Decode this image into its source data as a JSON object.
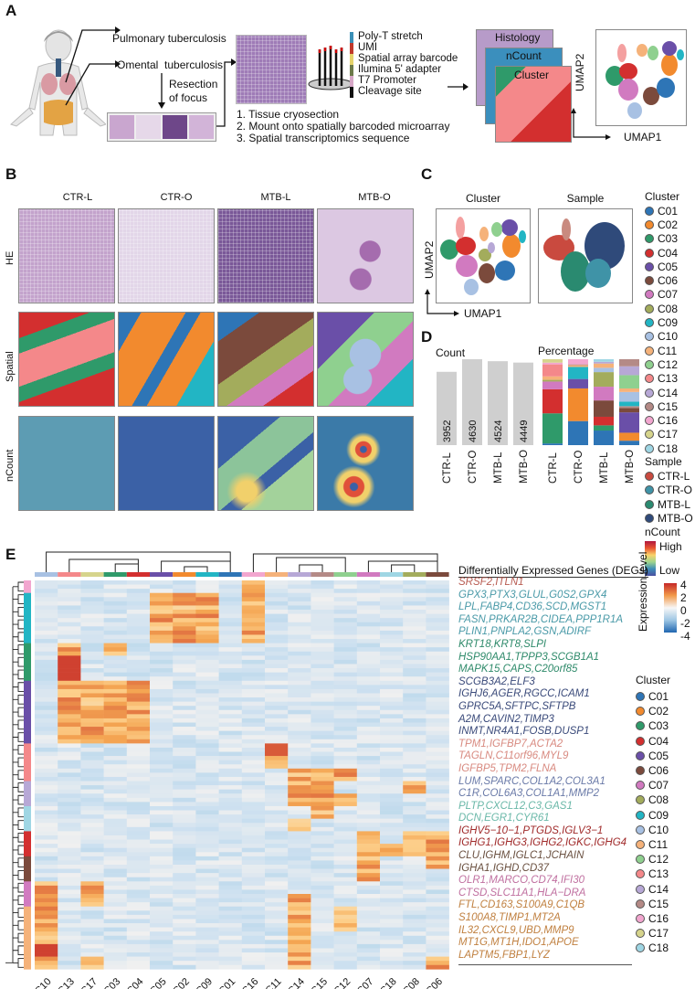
{
  "panels": {
    "A": {
      "label": "A",
      "targets": [
        "Pulmonary tuberculosis",
        "Omental  tuberculosis"
      ],
      "resection": [
        "Resection",
        "of focus"
      ],
      "steps": [
        "1. Tissue cryosection",
        "2. Mount onto spatially barcoded microarray",
        "3. Spatial transcriptomics sequence"
      ],
      "probe_parts": [
        {
          "label": "Poly-T stretch",
          "color": "#3a8fb7"
        },
        {
          "label": "UMI",
          "color": "#c0392b"
        },
        {
          "label": "Spatial array barcode",
          "color": "#e6d36b"
        },
        {
          "label": "Ilumina 5' adapter",
          "color": "#6d7a4a"
        },
        {
          "label": "T7 Promoter",
          "color": "#d7a7c7"
        },
        {
          "label": "Cleavage site",
          "color": "#111111"
        }
      ],
      "layers": [
        "Histology",
        "nCount",
        "Cluster"
      ],
      "umap_x": "UMAP1",
      "umap_y": "UMAP2"
    },
    "B": {
      "label": "B",
      "columns": [
        "CTR-L",
        "CTR-O",
        "MTB-L",
        "MTB-O"
      ],
      "rows": [
        "HE",
        "Spatial",
        "nCount"
      ]
    },
    "C": {
      "label": "C",
      "titles": [
        "Cluster",
        "Sample"
      ],
      "umap_x": "UMAP1",
      "umap_y": "UMAP2"
    },
    "D": {
      "label": "D"
    },
    "E": {
      "label": "E"
    }
  },
  "legend_right": {
    "cluster_title": "Cluster",
    "clusters": [
      {
        "id": "C01",
        "color": "#2e75b6"
      },
      {
        "id": "C02",
        "color": "#f28a2e"
      },
      {
        "id": "C03",
        "color": "#2f9a6a"
      },
      {
        "id": "C04",
        "color": "#d32f2f"
      },
      {
        "id": "C05",
        "color": "#6a4fa8"
      },
      {
        "id": "C06",
        "color": "#7b4a3c"
      },
      {
        "id": "C07",
        "color": "#d17ac0"
      },
      {
        "id": "C08",
        "color": "#a3ac5c"
      },
      {
        "id": "C09",
        "color": "#22b5c4"
      },
      {
        "id": "C10",
        "color": "#a8c1e3"
      },
      {
        "id": "C11",
        "color": "#f5b27a"
      },
      {
        "id": "C12",
        "color": "#8fd08f"
      },
      {
        "id": "C13",
        "color": "#f4888a"
      },
      {
        "id": "C14",
        "color": "#b7a8d6"
      },
      {
        "id": "C15",
        "color": "#b48a86"
      },
      {
        "id": "C16",
        "color": "#f2a6cf"
      },
      {
        "id": "C17",
        "color": "#d6d48c"
      },
      {
        "id": "C18",
        "color": "#9fd6e4"
      }
    ],
    "sample_title": "Sample",
    "samples": [
      {
        "id": "CTR-L",
        "color": "#c94a3f"
      },
      {
        "id": "CTR-O",
        "color": "#3f93a7"
      },
      {
        "id": "MTB-L",
        "color": "#2a8a70"
      },
      {
        "id": "MTB-O",
        "color": "#2f4a7a"
      }
    ],
    "ncount_title": "nCount",
    "ncount_high": "High",
    "ncount_low": "Low"
  },
  "chart_data": [
    {
      "type": "bar",
      "title": "Count",
      "categories": [
        "CTR-L",
        "CTR-O",
        "MTB-L",
        "MTB-O"
      ],
      "values": [
        3952,
        4630,
        4524,
        4449
      ],
      "ylim": [
        0,
        4630
      ]
    },
    {
      "type": "bar",
      "stacked": true,
      "title": "Percentage",
      "categories": [
        "CTR-L",
        "CTR-O",
        "MTB-L",
        "MTB-O"
      ],
      "segments_bottom_to_top": [
        [
          {
            "cluster": "C01",
            "pct": 2
          },
          {
            "cluster": "C03",
            "pct": 35
          },
          {
            "cluster": "C04",
            "pct": 28
          },
          {
            "cluster": "C07",
            "pct": 9
          },
          {
            "cluster": "C08",
            "pct": 2
          },
          {
            "cluster": "C11",
            "pct": 4
          },
          {
            "cluster": "C13",
            "pct": 14
          },
          {
            "cluster": "C16",
            "pct": 2
          },
          {
            "cluster": "C17",
            "pct": 4
          }
        ],
        [
          {
            "cluster": "C01",
            "pct": 28
          },
          {
            "cluster": "C02",
            "pct": 38
          },
          {
            "cluster": "C05",
            "pct": 11
          },
          {
            "cluster": "C09",
            "pct": 14
          },
          {
            "cluster": "C11",
            "pct": 2
          },
          {
            "cluster": "C15",
            "pct": 1
          },
          {
            "cluster": "C16",
            "pct": 6
          }
        ],
        [
          {
            "cluster": "C01",
            "pct": 17
          },
          {
            "cluster": "C03",
            "pct": 6
          },
          {
            "cluster": "C04",
            "pct": 10
          },
          {
            "cluster": "C06",
            "pct": 19
          },
          {
            "cluster": "C07",
            "pct": 16
          },
          {
            "cluster": "C08",
            "pct": 17
          },
          {
            "cluster": "C10",
            "pct": 5
          },
          {
            "cluster": "C11",
            "pct": 5
          },
          {
            "cluster": "C14",
            "pct": 2
          },
          {
            "cluster": "C18",
            "pct": 3
          }
        ],
        [
          {
            "cluster": "C01",
            "pct": 5
          },
          {
            "cluster": "C02",
            "pct": 9
          },
          {
            "cluster": "C05",
            "pct": 23
          },
          {
            "cluster": "C06",
            "pct": 5
          },
          {
            "cluster": "C15",
            "pct": 2
          },
          {
            "cluster": "C09",
            "pct": 5
          },
          {
            "cluster": "C10",
            "pct": 11
          },
          {
            "cluster": "C11",
            "pct": 4
          },
          {
            "cluster": "C12",
            "pct": 15
          },
          {
            "cluster": "C14",
            "pct": 10
          },
          {
            "cluster": "C15b",
            "pct": 8
          }
        ]
      ],
      "ylim": [
        0,
        100
      ]
    },
    {
      "type": "heatmap",
      "title": "Differentially Expressed Genes (DEGs)",
      "colorbar_label": "Expression level",
      "colorbar_ticks": [
        4,
        2,
        0,
        -2,
        -4
      ],
      "zlim": [
        -4,
        4
      ],
      "columns": [
        "C10",
        "C13",
        "C17",
        "C03",
        "C04",
        "C05",
        "C02",
        "C09",
        "C01",
        "C16",
        "C11",
        "C14",
        "C15",
        "C12",
        "C07",
        "C18",
        "C08",
        "C06"
      ],
      "row_groups": [
        {
          "cluster": "C16",
          "genes": "SRSF2,ITLN1",
          "peak_cols": [
            "C16"
          ]
        },
        {
          "cluster": "C09",
          "genes": "GPX3,PTX3,GLUL,G0S2,GPX4",
          "peak_cols": [
            "C05",
            "C02",
            "C09",
            "C16"
          ]
        },
        {
          "cluster": "C09",
          "genes": "LPL,FABP4,CD36,SCD,MGST1",
          "peak_cols": [
            "C05",
            "C02",
            "C09",
            "C16"
          ]
        },
        {
          "cluster": "C09",
          "genes": "FASN,PRKAR2B,CIDEA,PPP1R1A",
          "peak_cols": [
            "C05",
            "C02",
            "C09",
            "C16"
          ]
        },
        {
          "cluster": "C09",
          "genes": "PLIN1,PNPLA2,GSN,ADIRF",
          "peak_cols": [
            "C05",
            "C02",
            "C09",
            "C16"
          ]
        },
        {
          "cluster": "C03",
          "genes": "KRT18,KRT8,SLPI",
          "peak_cols": [
            "C13",
            "C03"
          ]
        },
        {
          "cluster": "C03",
          "genes": "HSP90AA1,TPPP3,SCGB1A1",
          "peak_cols": [
            "C13"
          ]
        },
        {
          "cluster": "C03",
          "genes": "MAPK15,CAPS,C20orf85",
          "peak_cols": [
            "C13"
          ]
        },
        {
          "cluster": "C05",
          "genes": "SCGB3A2,ELF3",
          "peak_cols": [
            "C13",
            "C17",
            "C03",
            "C04"
          ]
        },
        {
          "cluster": "C05",
          "genes": "IGHJ6,AGER,RGCC,ICAM1",
          "peak_cols": [
            "C13",
            "C17",
            "C03",
            "C04"
          ]
        },
        {
          "cluster": "C05",
          "genes": "GPRC5A,SFTPC,SFTPB",
          "peak_cols": [
            "C13",
            "C17",
            "C03",
            "C04"
          ]
        },
        {
          "cluster": "C05",
          "genes": "A2M,CAVIN2,TIMP3",
          "peak_cols": [
            "C13",
            "C17",
            "C03",
            "C04"
          ]
        },
        {
          "cluster": "C05",
          "genes": "INMT,NR4A1,FOSB,DUSP1",
          "peak_cols": [
            "C13",
            "C17",
            "C03",
            "C04"
          ]
        },
        {
          "cluster": "C13",
          "genes": "TPM1,IGFBP7,ACTA2",
          "peak_cols": [
            "C11"
          ]
        },
        {
          "cluster": "C13",
          "genes": "TAGLN,C11orf96,MYL9",
          "peak_cols": [
            "C11"
          ]
        },
        {
          "cluster": "C13",
          "genes": "IGFBP5,TPM2,FLNA",
          "peak_cols": [
            "C14",
            "C15",
            "C12"
          ]
        },
        {
          "cluster": "C14",
          "genes": "LUM,SPARC,COL1A2,COL3A1",
          "peak_cols": [
            "C14",
            "C15",
            "C08"
          ]
        },
        {
          "cluster": "C14",
          "genes": "C1R,COL6A3,COL1A1,MMP2",
          "peak_cols": [
            "C14",
            "C15",
            "C12"
          ]
        },
        {
          "cluster": "C18",
          "genes": "PLTP,CXCL12,C3,GAS1",
          "peak_cols": [
            "C15"
          ]
        },
        {
          "cluster": "C18",
          "genes": "DCN,EGR1,CYR61",
          "peak_cols": [
            "C14"
          ]
        },
        {
          "cluster": "C04",
          "genes": "IGHV5-10-1,PTGDS,IGLV3-1",
          "peak_cols": [
            "C07",
            "C08",
            "C06"
          ]
        },
        {
          "cluster": "C04",
          "genes": "IGHG1,IGHG3,IGHG2,IGKC,IGHG4",
          "peak_cols": [
            "C07",
            "C18",
            "C08",
            "C06"
          ]
        },
        {
          "cluster": "C06",
          "genes": "CLU,IGHM,IGLC1,JCHAIN",
          "peak_cols": [
            "C07",
            "C06"
          ]
        },
        {
          "cluster": "C06",
          "genes": "IGHA1,IGHD,CD37",
          "peak_cols": [
            "C07"
          ]
        },
        {
          "cluster": "C07",
          "genes": "OLR1,MARCO,CD74,IFI30",
          "peak_cols": [
            "C10",
            "C17"
          ]
        },
        {
          "cluster": "C07",
          "genes": "CTSD,SLC11A1,HLA-DRA",
          "peak_cols": [
            "C10",
            "C17",
            "C14"
          ]
        },
        {
          "cluster": "C11",
          "genes": "FTL,CD163,S100A9,C1QB",
          "peak_cols": [
            "C10",
            "C14",
            "C12"
          ]
        },
        {
          "cluster": "C11",
          "genes": "S100A8,TIMP1,MT2A",
          "peak_cols": [
            "C10",
            "C14",
            "C12"
          ]
        },
        {
          "cluster": "C11",
          "genes": "IL32,CXCL9,UBD,MMP9",
          "peak_cols": [
            "C10",
            "C14"
          ]
        },
        {
          "cluster": "C11",
          "genes": "MT1G,MT1H,IDO1,APOE",
          "peak_cols": [
            "C10",
            "C14"
          ]
        },
        {
          "cluster": "C11",
          "genes": "LAPTM5,FBP1,LYZ",
          "peak_cols": [
            "C10",
            "C17",
            "C14",
            "C06"
          ]
        }
      ]
    }
  ],
  "heatmap_legend": {
    "cluster_title": "Cluster"
  },
  "gene_label_colors": {
    "C16": "#b85c52",
    "C09": "#4a9aa8",
    "C03": "#2e8a6a",
    "C05": "#3a4a7a",
    "C13": "#d88a80",
    "C14": "#6a7aa8",
    "C18": "#6ab8a8",
    "C04": "#a02a2a",
    "C06": "#6a5040",
    "C07": "#c070a0",
    "C11": "#c08040"
  }
}
